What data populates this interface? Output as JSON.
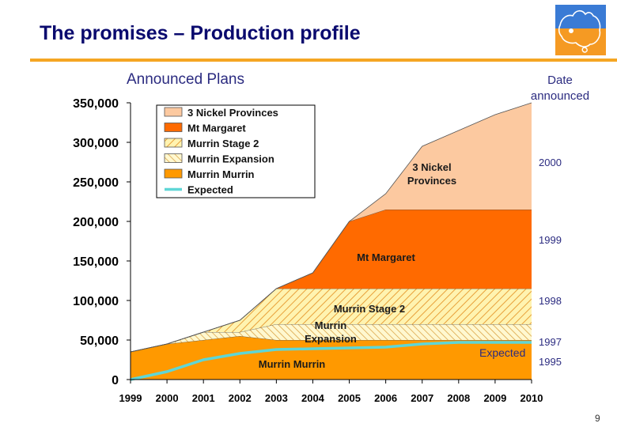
{
  "page": {
    "title": "The promises – Production profile",
    "subtitle": "Announced Plans",
    "date_header": "Date announced",
    "page_number": "9"
  },
  "logo": {
    "name": "australia-map-logo"
  },
  "colors": {
    "three_nickel": "#fcc9a0",
    "mt_margaret": "#ff6a00",
    "murrin_stage2_fill": "#fff3b0",
    "murrin_stage2_hatch": "#e8a13a",
    "murrin_expansion_fill": "#fff8d0",
    "murrin_expansion_hatch": "#d9a040",
    "murrin_murrin": "#ff9900",
    "expected": "#5fd6d6",
    "title": "#0a0a6e",
    "accent_rule": "#f5a623"
  },
  "chart_data": {
    "type": "area",
    "title": "Announced Plans",
    "xlabel": "",
    "ylabel": "",
    "x": [
      1999,
      2000,
      2001,
      2002,
      2003,
      2004,
      2005,
      2006,
      2007,
      2008,
      2009,
      2010
    ],
    "x_tick_labels": [
      "1999",
      "2000",
      "2001",
      "2002",
      "2003",
      "2004",
      "2005",
      "2006",
      "2007",
      "2008",
      "2009",
      "2010"
    ],
    "ylim": [
      0,
      350000
    ],
    "y_ticks": [
      0,
      50000,
      100000,
      150000,
      200000,
      250000,
      300000,
      350000
    ],
    "y_tick_labels": [
      "0",
      "50,000",
      "100,000",
      "150,000",
      "200,000",
      "250,000",
      "300,000",
      "350,000"
    ],
    "stack_order_bottom_to_top": [
      "Murrin Murrin",
      "Murrin Expansion",
      "Murrin Stage 2",
      "Mt Margaret",
      "3 Nickel Provinces"
    ],
    "series": [
      {
        "name": "Murrin Murrin",
        "announced": "1995",
        "values": [
          35000,
          45000,
          50000,
          55000,
          50000,
          50000,
          50000,
          50000,
          50000,
          50000,
          50000,
          50000
        ]
      },
      {
        "name": "Murrin Expansion",
        "announced": "1997",
        "values": [
          0,
          0,
          10000,
          5000,
          20000,
          20000,
          20000,
          20000,
          20000,
          20000,
          20000,
          20000
        ]
      },
      {
        "name": "Murrin Stage 2",
        "announced": "1998",
        "values": [
          0,
          0,
          0,
          15000,
          45000,
          45000,
          45000,
          45000,
          45000,
          45000,
          45000,
          45000
        ]
      },
      {
        "name": "Mt Margaret",
        "announced": "1999",
        "values": [
          0,
          0,
          0,
          0,
          0,
          20000,
          85000,
          100000,
          100000,
          100000,
          100000,
          100000
        ]
      },
      {
        "name": "3 Nickel Provinces",
        "announced": "2000",
        "values": [
          0,
          0,
          0,
          0,
          0,
          0,
          0,
          20000,
          80000,
          100000,
          120000,
          135000
        ]
      },
      {
        "name": "Expected",
        "type": "line",
        "label": "Expected",
        "values": [
          0,
          10000,
          25000,
          33000,
          38000,
          39000,
          40000,
          41000,
          45000,
          47000,
          47000,
          47000
        ]
      }
    ],
    "annotations": [
      {
        "text": "3 Nickel Provinces",
        "series": "3 Nickel Provinces"
      },
      {
        "text": "Mt Margaret",
        "series": "Mt Margaret"
      },
      {
        "text": "Murrin Stage 2",
        "series": "Murrin Stage 2"
      },
      {
        "text": "Murrin Expansion",
        "series": "Murrin Expansion"
      },
      {
        "text": "Murrin Murrin",
        "series": "Murrin Murrin"
      },
      {
        "text": "Expected",
        "series": "Expected"
      }
    ],
    "right_labels": [
      {
        "text": "2000",
        "series": "3 Nickel Provinces"
      },
      {
        "text": "1999",
        "series": "Mt Margaret"
      },
      {
        "text": "1998",
        "series": "Murrin Stage 2"
      },
      {
        "text": "1997",
        "series": "Murrin Expansion"
      },
      {
        "text": "1995",
        "series": "Murrin Murrin"
      }
    ],
    "legend": {
      "placement": "top-left",
      "entries": [
        "3 Nickel Provinces",
        "Mt Margaret",
        "Murrin Stage 2",
        "Murrin Expansion",
        "Murrin Murrin",
        "Expected"
      ]
    }
  }
}
